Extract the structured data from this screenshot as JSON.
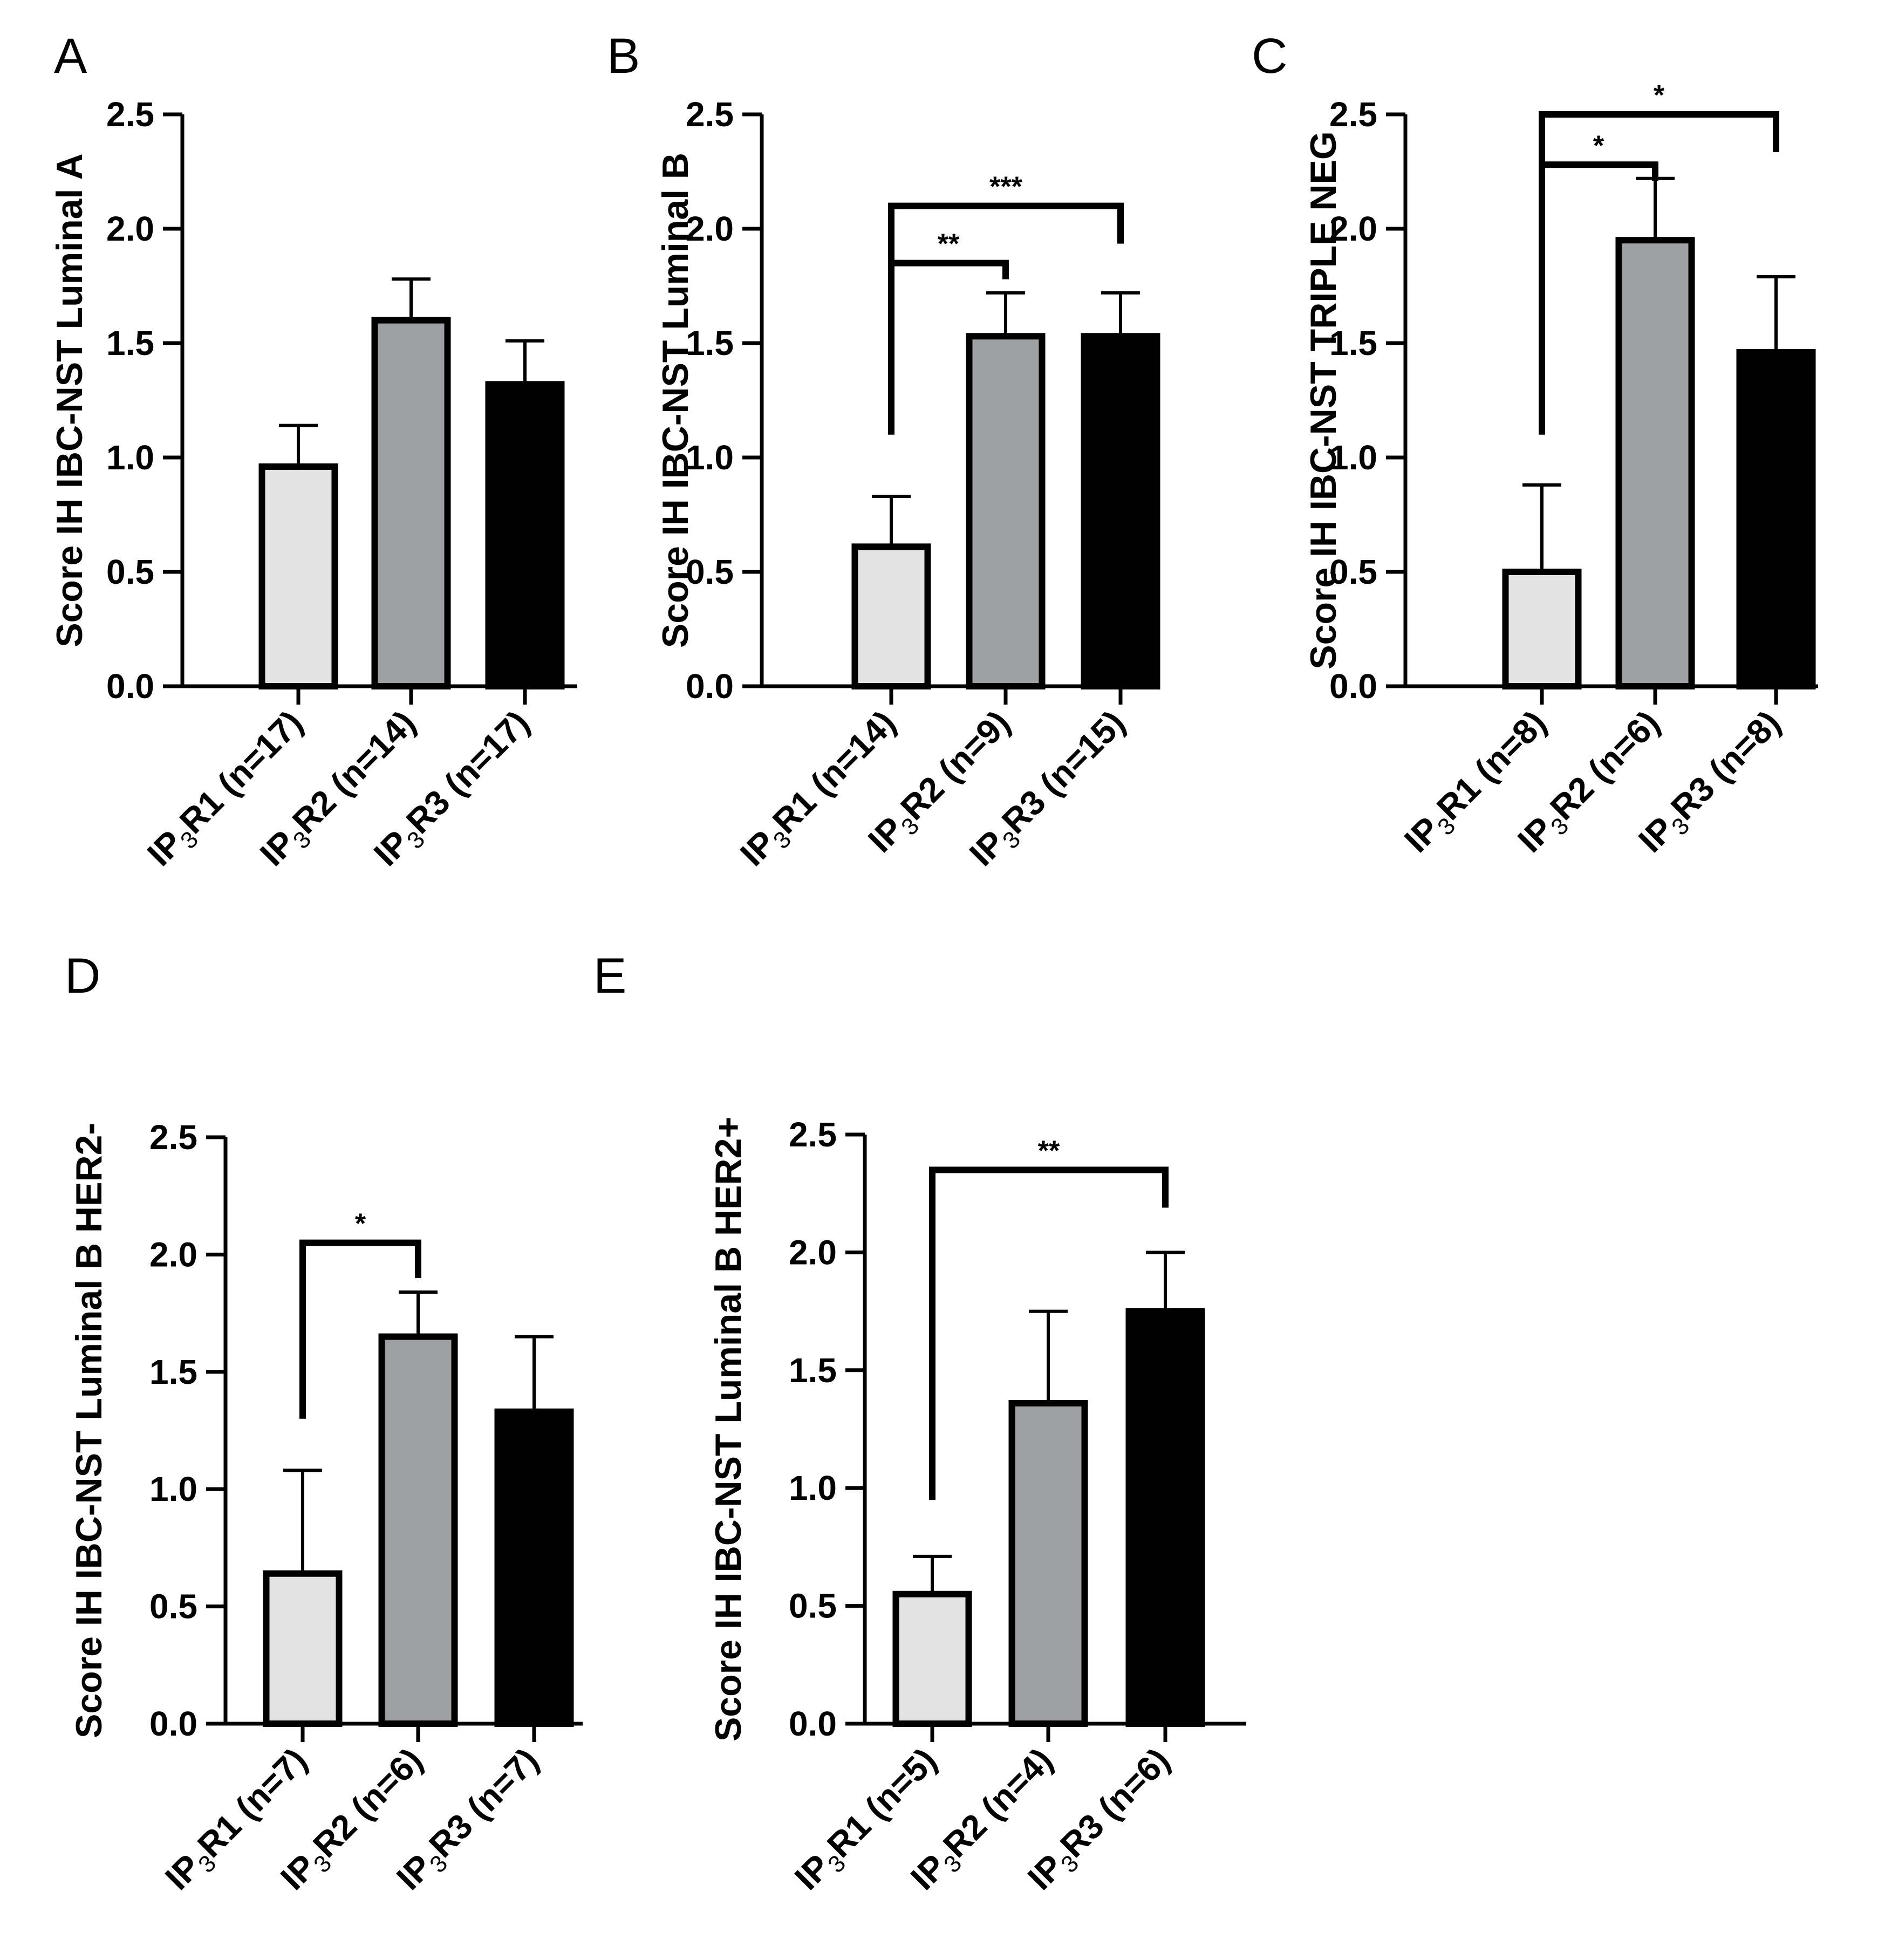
{
  "chart_data": [
    {
      "panel": "A",
      "type": "bar",
      "ylabel": "Score IH IBC-NST Luminal A",
      "ylim": [
        0,
        2.5
      ],
      "yticks": [
        "0.0",
        "0.5",
        "1.0",
        "1.5",
        "2.0",
        "2.5"
      ],
      "categories": [
        {
          "pre": "IP",
          "sub": "3",
          "post": "R1 (n=17)"
        },
        {
          "pre": "IP",
          "sub": "3",
          "post": "R2 (n=14)"
        },
        {
          "pre": "IP",
          "sub": "3",
          "post": "R3 (n=17)"
        }
      ],
      "values": [
        0.96,
        1.6,
        1.32
      ],
      "errors": [
        0.18,
        0.18,
        0.19
      ],
      "colors": [
        "#e3e3e3",
        "#9fa0a3",
        "#000000"
      ],
      "significance": []
    },
    {
      "panel": "B",
      "type": "bar",
      "ylabel": "Score IH IBC-NST Luminal B",
      "ylim": [
        0,
        2.5
      ],
      "yticks": [
        "0.0",
        "0.5",
        "1.0",
        "1.5",
        "2.0",
        "2.5"
      ],
      "categories": [
        {
          "pre": "IP",
          "sub": "3",
          "post": "R1 (n=14)"
        },
        {
          "pre": "IP",
          "sub": "3",
          "post": "R2 (n=9)"
        },
        {
          "pre": "IP",
          "sub": "3",
          "post": "R3 (n=15)"
        }
      ],
      "values": [
        0.61,
        1.53,
        1.53
      ],
      "errors": [
        0.22,
        0.19,
        0.19
      ],
      "colors": [
        "#e3e3e3",
        "#9fa0a3",
        "#000000"
      ],
      "significance": [
        {
          "from": 0,
          "to": 1,
          "label": "**",
          "y": 1.85,
          "start": 1.1
        },
        {
          "from": 0,
          "to": 2,
          "label": "***",
          "y": 2.1,
          "start": 1.1
        }
      ]
    },
    {
      "panel": "C",
      "type": "bar",
      "ylabel": "Score IH IBC-NST TRIPLE NEG",
      "ylim": [
        0,
        2.5
      ],
      "yticks": [
        "0.0",
        "0.5",
        "1.0",
        "1.5",
        "2.0",
        "2.5"
      ],
      "categories": [
        {
          "pre": "IP",
          "sub": "3",
          "post": "R1 (n=8)"
        },
        {
          "pre": "IP",
          "sub": "3",
          "post": "R2 (n=6)"
        },
        {
          "pre": "IP",
          "sub": "3",
          "post": "R3 (n=8)"
        }
      ],
      "values": [
        0.5,
        1.95,
        1.46
      ],
      "errors": [
        0.38,
        0.27,
        0.33
      ],
      "colors": [
        "#e3e3e3",
        "#9fa0a3",
        "#000000"
      ],
      "significance": [
        {
          "from": 0,
          "to": 1,
          "label": "*",
          "y": 2.28,
          "start": 1.1
        },
        {
          "from": 0,
          "to": 2,
          "label": "*",
          "y": 2.5,
          "start": 1.1
        }
      ]
    },
    {
      "panel": "D",
      "type": "bar",
      "ylabel": "Score IH IBC-NST Luminal B HER2-",
      "ylim": [
        0,
        2.5
      ],
      "yticks": [
        "0.0",
        "0.5",
        "1.0",
        "1.5",
        "2.0",
        "2.5"
      ],
      "categories": [
        {
          "pre": "IP",
          "sub": "3",
          "post": "R1 (n=7)"
        },
        {
          "pre": "IP",
          "sub": "3",
          "post": "R2 (n=6)"
        },
        {
          "pre": "IP",
          "sub": "3",
          "post": "R3 (n=7)"
        }
      ],
      "values": [
        0.64,
        1.65,
        1.33
      ],
      "errors": [
        0.44,
        0.19,
        0.32
      ],
      "colors": [
        "#e3e3e3",
        "#9fa0a3",
        "#000000"
      ],
      "significance": [
        {
          "from": 0,
          "to": 1,
          "label": "*",
          "y": 2.05,
          "start": 1.3
        }
      ]
    },
    {
      "panel": "E",
      "type": "bar",
      "ylabel": "Score IH IBC-NST Luminal B HER2+",
      "ylim": [
        0,
        2.5
      ],
      "yticks": [
        "0.0",
        "0.5",
        "1.0",
        "1.5",
        "2.0",
        "2.5"
      ],
      "categories": [
        {
          "pre": "IP",
          "sub": "3",
          "post": "R1 (n=5)"
        },
        {
          "pre": "IP",
          "sub": "3",
          "post": "R2 (n=4)"
        },
        {
          "pre": "IP",
          "sub": "3",
          "post": "R3 (n=6)"
        }
      ],
      "values": [
        0.55,
        1.36,
        1.75
      ],
      "errors": [
        0.16,
        0.39,
        0.25
      ],
      "colors": [
        "#e3e3e3",
        "#9fa0a3",
        "#000000"
      ],
      "significance": [
        {
          "from": 0,
          "to": 2,
          "label": "**",
          "y": 2.35,
          "start": 0.95
        }
      ]
    }
  ]
}
